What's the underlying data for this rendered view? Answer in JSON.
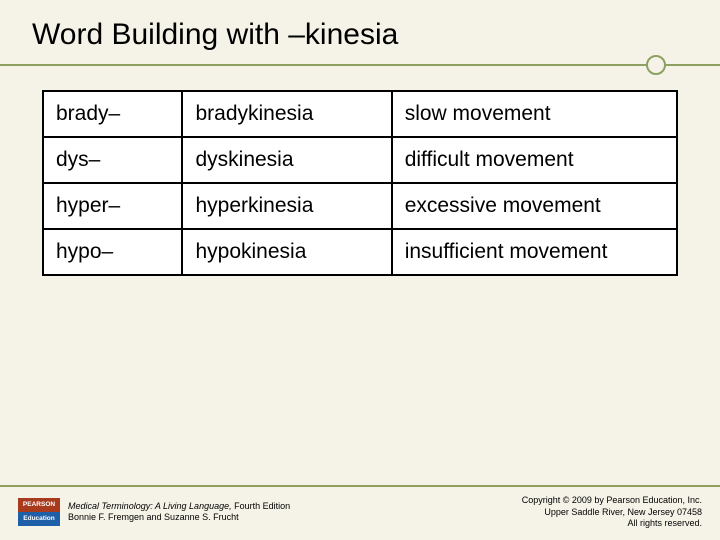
{
  "slide": {
    "title": "Word Building with –kinesia",
    "background_color": "#f5f3e8",
    "divider_color": "#8ea060"
  },
  "table": {
    "type": "table",
    "border_color": "#000000",
    "cell_bg": "#ffffff",
    "font_size": 21,
    "columns": [
      {
        "width_pct": 22
      },
      {
        "width_pct": 33
      },
      {
        "width_pct": 45
      }
    ],
    "rows": [
      {
        "prefix": "brady–",
        "word": "bradykinesia",
        "meaning": "slow movement"
      },
      {
        "prefix": "dys–",
        "word": "dyskinesia",
        "meaning": "difficult movement"
      },
      {
        "prefix": "hyper–",
        "word": "hyperkinesia",
        "meaning": "excessive movement"
      },
      {
        "prefix": "hypo–",
        "word": "hypokinesia",
        "meaning": "insufficient movement"
      }
    ]
  },
  "footer": {
    "logo": {
      "top_text": "PEARSON",
      "bottom_text": "Education",
      "top_color": "#a83a1e",
      "bottom_color": "#1e5fa8"
    },
    "book_title": "Medical Terminology: A Living Language,",
    "edition": " Fourth Edition",
    "authors": "Bonnie F. Fremgen and Suzanne S. Frucht",
    "copyright_line1": "Copyright © 2009 by Pearson Education, Inc.",
    "copyright_line2": "Upper Saddle River, New Jersey 07458",
    "copyright_line3": "All rights reserved."
  }
}
